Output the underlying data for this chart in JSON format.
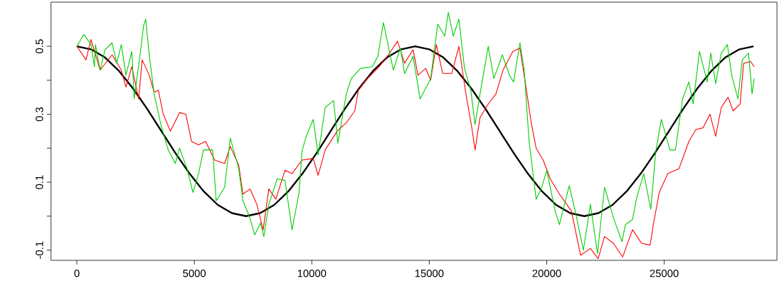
{
  "chart_data": {
    "type": "line",
    "xlim": [
      -1100,
      29800
    ],
    "ylim": [
      -0.13,
      0.63
    ],
    "xticks": [
      0,
      5000,
      10000,
      15000,
      20000,
      25000
    ],
    "yticks": [
      -0.1,
      {
        "value": 0,
        "label": null
      },
      0.1,
      {
        "value": 0.2,
        "label": null
      },
      0.3,
      {
        "value": 0.4,
        "label": null
      },
      0.5
    ],
    "series": [
      {
        "color": "#000000",
        "x": [
          0,
          600,
          1200,
          1800,
          2400,
          3000,
          3600,
          4200,
          4800,
          5400,
          6000,
          6600,
          7200,
          7800,
          8400,
          9000,
          9600,
          10200,
          10800,
          11400,
          12000,
          12600,
          13200,
          13800,
          14400,
          15000,
          15600,
          16200,
          16800,
          17400,
          18000,
          18600,
          19200,
          19800,
          20400,
          21000,
          21600,
          22200,
          22800,
          23400,
          24000,
          24600,
          25200,
          25800,
          26400,
          27000,
          27600,
          28200,
          28800
        ],
        "values": [
          0.5,
          0.491,
          0.467,
          0.427,
          0.375,
          0.315,
          0.25,
          0.185,
          0.125,
          0.073,
          0.033,
          0.009,
          0,
          0.009,
          0.033,
          0.073,
          0.125,
          0.185,
          0.25,
          0.315,
          0.375,
          0.427,
          0.467,
          0.491,
          0.5,
          0.491,
          0.467,
          0.427,
          0.375,
          0.315,
          0.25,
          0.185,
          0.125,
          0.073,
          0.033,
          0.009,
          0,
          0.009,
          0.033,
          0.073,
          0.125,
          0.185,
          0.25,
          0.315,
          0.375,
          0.427,
          0.467,
          0.491,
          0.5
        ]
      },
      {
        "color": "#ff0000",
        "x": [
          0,
          390,
          600,
          990,
          1500,
          1890,
          2090,
          2340,
          2630,
          2780,
          3080,
          3290,
          3470,
          3680,
          3980,
          4370,
          4640,
          4880,
          5180,
          5480,
          5870,
          6290,
          6530,
          6890,
          7070,
          7370,
          7660,
          7930,
          8170,
          8470,
          8860,
          9160,
          9580,
          10060,
          10270,
          10570,
          11080,
          11470,
          11830,
          11980,
          12370,
          12870,
          13260,
          13650,
          13950,
          14310,
          14520,
          14850,
          15060,
          15300,
          15570,
          15960,
          16260,
          16560,
          16800,
          16950,
          17160,
          17510,
          17840,
          18140,
          18560,
          18860,
          19160,
          19340,
          19550,
          19850,
          20150,
          20540,
          21050,
          21440,
          21860,
          22190,
          22460,
          22840,
          23230,
          23650,
          24040,
          24400,
          24550,
          24790,
          25150,
          25630,
          26050,
          26350,
          26650,
          26950,
          27190,
          27430,
          27720,
          27930,
          28230,
          28380,
          28680,
          28830
        ],
        "values": [
          0.5,
          0.46,
          0.52,
          0.43,
          0.475,
          0.43,
          0.38,
          0.44,
          0.345,
          0.46,
          0.415,
          0.365,
          0.37,
          0.3,
          0.25,
          0.305,
          0.3,
          0.22,
          0.21,
          0.22,
          0.165,
          0.155,
          0.205,
          0.15,
          0.065,
          0.08,
          0.035,
          -0.04,
          0.08,
          0.05,
          0.135,
          0.125,
          0.165,
          0.17,
          0.12,
          0.195,
          0.25,
          0.275,
          0.31,
          0.37,
          0.405,
          0.44,
          0.475,
          0.515,
          0.45,
          0.49,
          0.415,
          0.435,
          0.4,
          0.505,
          0.42,
          0.42,
          0.5,
          0.36,
          0.265,
          0.195,
          0.29,
          0.33,
          0.36,
          0.43,
          0.485,
          0.495,
          0.36,
          0.275,
          0.2,
          0.165,
          0.11,
          0.065,
          0.015,
          -0.115,
          -0.095,
          -0.125,
          -0.06,
          -0.08,
          -0.12,
          -0.04,
          -0.08,
          -0.085,
          -0.02,
          0.07,
          0.125,
          0.14,
          0.22,
          0.255,
          0.26,
          0.3,
          0.235,
          0.32,
          0.35,
          0.31,
          0.33,
          0.45,
          0.455,
          0.44
        ]
      },
      {
        "color": "#00cd00",
        "x": [
          0,
          300,
          600,
          750,
          790,
          990,
          1200,
          1500,
          1700,
          1890,
          2090,
          2340,
          2440,
          2690,
          2840,
          2930,
          3080,
          3290,
          3590,
          3890,
          4190,
          4370,
          4690,
          4940,
          5180,
          5390,
          5780,
          5930,
          6290,
          6530,
          6890,
          7070,
          7340,
          7570,
          7820,
          7960,
          8170,
          8530,
          8860,
          9160,
          9460,
          9580,
          9760,
          10060,
          10270,
          10570,
          10930,
          11110,
          11470,
          11680,
          12070,
          12570,
          12810,
          13050,
          13470,
          13770,
          13950,
          14310,
          14610,
          15060,
          15360,
          15660,
          15810,
          16020,
          16260,
          16500,
          16770,
          16950,
          17210,
          17510,
          17750,
          18110,
          18410,
          18590,
          18860,
          19040,
          19250,
          19550,
          19790,
          20000,
          20360,
          20540,
          20960,
          21260,
          21560,
          21860,
          22160,
          22460,
          22840,
          23200,
          23350,
          23650,
          23830,
          24130,
          24430,
          24640,
          24880,
          25240,
          25480,
          25780,
          26050,
          26230,
          26500,
          26830,
          26980,
          27190,
          27430,
          27690,
          27870,
          28140,
          28320,
          28590,
          28740,
          28830
        ],
        "values": [
          0.5,
          0.535,
          0.505,
          0.44,
          0.505,
          0.43,
          0.49,
          0.51,
          0.45,
          0.505,
          0.415,
          0.485,
          0.345,
          0.475,
          0.56,
          0.58,
          0.475,
          0.36,
          0.265,
          0.195,
          0.155,
          0.2,
          0.14,
          0.07,
          0.125,
          0.195,
          0.195,
          0.045,
          0.085,
          0.23,
          0.14,
          0.045,
          0.0,
          -0.055,
          -0.02,
          -0.06,
          0.035,
          0.11,
          0.105,
          -0.04,
          0.07,
          0.19,
          0.235,
          0.285,
          0.18,
          0.32,
          0.34,
          0.215,
          0.36,
          0.405,
          0.435,
          0.44,
          0.47,
          0.57,
          0.43,
          0.495,
          0.42,
          0.47,
          0.345,
          0.405,
          0.565,
          0.53,
          0.6,
          0.53,
          0.58,
          0.435,
          0.37,
          0.27,
          0.38,
          0.5,
          0.405,
          0.475,
          0.415,
          0.395,
          0.51,
          0.43,
          0.22,
          0.05,
          0.085,
          0.135,
          0.015,
          -0.025,
          0.09,
          0.0,
          -0.1,
          0.035,
          -0.11,
          0.085,
          -0.005,
          -0.075,
          -0.025,
          -0.01,
          0.055,
          0.125,
          0.02,
          0.19,
          0.285,
          0.195,
          0.195,
          0.345,
          0.395,
          0.33,
          0.485,
          0.395,
          0.48,
          0.39,
          0.48,
          0.505,
          0.415,
          0.345,
          0.46,
          0.48,
          0.36,
          0.405
        ]
      }
    ]
  }
}
